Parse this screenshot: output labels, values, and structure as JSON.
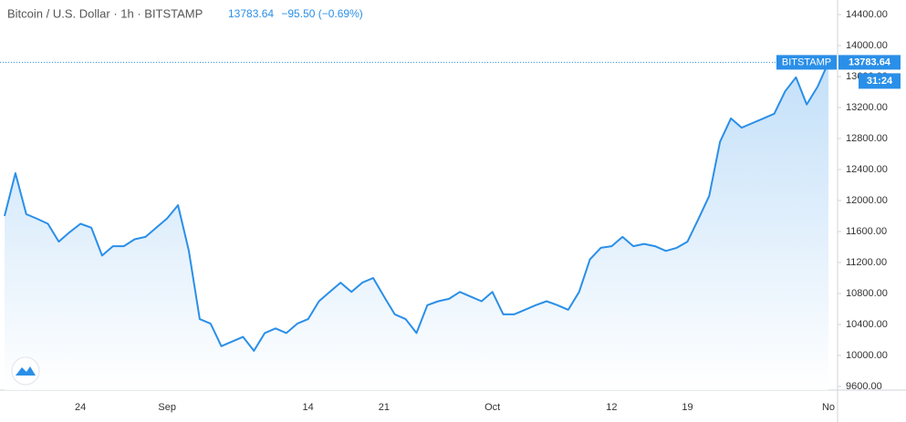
{
  "chart_data": {
    "type": "area",
    "title": "Bitcoin / U.S. Dollar · 1h · BITSTAMP",
    "change": "−95.50 (−0.69%)",
    "countdown": "31:24",
    "categories": [
      null,
      null,
      null,
      null,
      null,
      null,
      null,
      "24",
      null,
      null,
      null,
      null,
      null,
      null,
      null,
      "Sep",
      null,
      null,
      null,
      null,
      null,
      null,
      null,
      null,
      null,
      null,
      null,
      null,
      "14",
      null,
      null,
      null,
      null,
      null,
      null,
      "21",
      null,
      null,
      null,
      null,
      null,
      null,
      null,
      null,
      null,
      "Oct",
      null,
      null,
      null,
      null,
      null,
      null,
      null,
      null,
      null,
      null,
      "12",
      null,
      null,
      null,
      null,
      null,
      null,
      "19",
      null,
      null,
      null,
      null,
      null,
      null,
      null,
      null,
      null,
      null,
      null,
      null,
      "No"
    ],
    "series": [
      {
        "name": "BITSTAMP",
        "color": "#2a8fe8",
        "values": [
          11800,
          12353,
          11824,
          11765,
          11700,
          11470,
          11590,
          11700,
          11650,
          11290,
          11410,
          11410,
          11500,
          11530,
          11650,
          11770,
          11940,
          11350,
          10470,
          10410,
          10120,
          10180,
          10240,
          10060,
          10290,
          10350,
          10290,
          10410,
          10470,
          10700,
          10820,
          10940,
          10820,
          10940,
          11000,
          10760,
          10530,
          10470,
          10290,
          10650,
          10700,
          10730,
          10820,
          10760,
          10700,
          10820,
          10530,
          10530,
          10590,
          10650,
          10700,
          10650,
          10590,
          10820,
          11240,
          11390,
          11410,
          11530,
          11410,
          11440,
          11410,
          11350,
          11390,
          11470,
          11760,
          12060,
          12760,
          13060,
          12940,
          13000,
          13060,
          13120,
          13410,
          13590,
          13240,
          13470,
          13783.64
        ]
      }
    ],
    "ylim": [
      9600,
      14400
    ],
    "yticks": [
      {
        "value": 9600,
        "label": "9600.00"
      },
      {
        "value": 10000,
        "label": "10000.00"
      },
      {
        "value": 10400,
        "label": "10400.00"
      },
      {
        "value": 10800,
        "label": "10800.00"
      },
      {
        "value": 11200,
        "label": "11200.00"
      },
      {
        "value": 11600,
        "label": "11600.00"
      },
      {
        "value": 12000,
        "label": "12000.00"
      },
      {
        "value": 12400,
        "label": "12400.00"
      },
      {
        "value": 12800,
        "label": "12800.00"
      },
      {
        "value": 13200,
        "label": "13200.00"
      },
      {
        "value": 13600,
        "label": "13600.00"
      },
      {
        "value": 14000,
        "label": "14000.00"
      },
      {
        "value": 14400,
        "label": "14400.00"
      }
    ]
  }
}
